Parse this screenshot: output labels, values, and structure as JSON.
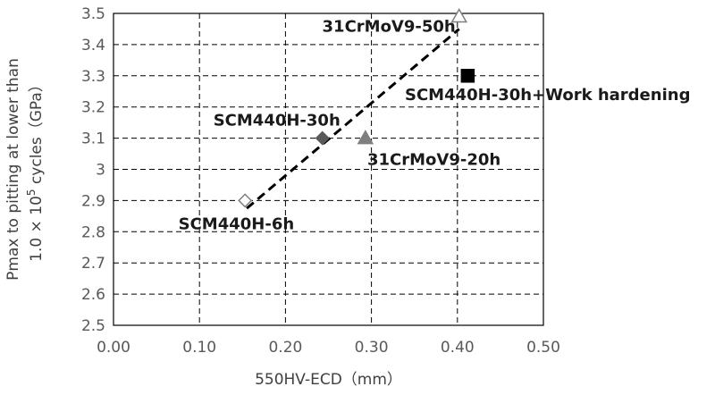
{
  "chart_data": {
    "type": "scatter",
    "title": "",
    "xlabel": "550HV-ECD（mm）",
    "ylabel_line1": "Pmax to pitting at lower than",
    "ylabel_line2_prefix": "1.0 × 10",
    "ylabel_line2_exp": "5",
    "ylabel_line2_suffix": " cycles（GPa）",
    "xlim": [
      0.0,
      0.5
    ],
    "ylim": [
      2.5,
      3.5
    ],
    "x_ticks": [
      "0.00",
      "0.10",
      "0.20",
      "0.30",
      "0.40",
      "0.50"
    ],
    "y_ticks": [
      "2.5",
      "2.6",
      "2.7",
      "2.8",
      "2.9",
      "3",
      "3.1",
      "3.2",
      "3.3",
      "3.4",
      "3.5"
    ],
    "x_tick_values": [
      0.0,
      0.1,
      0.2,
      0.3,
      0.4,
      0.5
    ],
    "y_tick_values": [
      2.5,
      2.6,
      2.7,
      2.8,
      2.9,
      3.0,
      3.1,
      3.2,
      3.3,
      3.4,
      3.5
    ],
    "grid": true,
    "points": [
      {
        "label": "SCM440H-6h",
        "x": 0.153,
        "y": 2.9,
        "marker": "diamond",
        "fill": "#ffffff",
        "stroke": "#7f7f7f",
        "label_pos": "below-left"
      },
      {
        "label": "SCM440H-30h",
        "x": 0.243,
        "y": 3.1,
        "marker": "diamond",
        "fill": "#595959",
        "stroke": "#595959",
        "label_pos": "above-left"
      },
      {
        "label": "31CrMoV9-20h",
        "x": 0.293,
        "y": 3.1,
        "marker": "triangle",
        "fill": "#7f7f7f",
        "stroke": "#7f7f7f",
        "label_pos": "below-right"
      },
      {
        "label": "31CrMoV9-50h",
        "x": 0.402,
        "y": 3.49,
        "marker": "triangle",
        "fill": "#ffffff",
        "stroke": "#7f7f7f",
        "label_pos": "left"
      },
      {
        "label": "SCM440H-30h+Work hardening",
        "x": 0.412,
        "y": 3.3,
        "marker": "square",
        "fill": "#000000",
        "stroke": "#000000",
        "label_pos": "below-right"
      }
    ],
    "trendline": {
      "x": [
        0.155,
        0.402
      ],
      "y": [
        2.875,
        3.45
      ]
    }
  }
}
